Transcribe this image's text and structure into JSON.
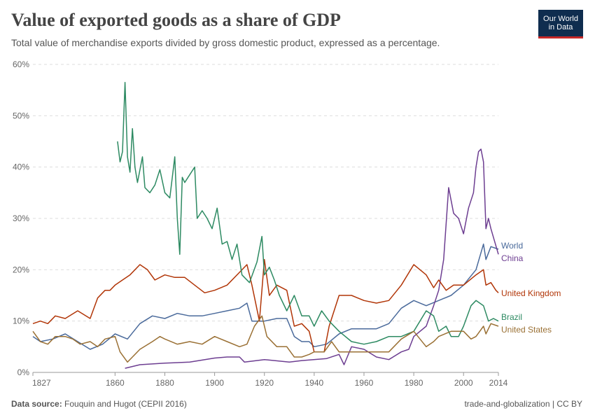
{
  "header": {
    "title": "Value of exported goods as a share of GDP",
    "subtitle": "Total value of merchandise exports divided by gross domestic product, expressed as a percentage.",
    "logo_line1": "Our World",
    "logo_line2": "in Data"
  },
  "footer": {
    "source_label": "Data source:",
    "source_text": "Fouquin and Hugot (CEPII 2016)",
    "license": "trade-and-globalization | CC BY"
  },
  "colors": {
    "World": "#4a6a9b",
    "China": "#6d3e91",
    "United Kingdom": "#b13507",
    "Brazil": "#2d8a62",
    "United States": "#9a7034",
    "grid": "#dddddd",
    "axis": "#999999"
  },
  "chart_data": {
    "type": "line",
    "title": "Value of exported goods as a share of GDP",
    "xlabel": "",
    "ylabel": "",
    "xlim": [
      1827,
      2014
    ],
    "ylim": [
      0,
      60
    ],
    "x_ticks": [
      1827,
      1860,
      1880,
      1900,
      1920,
      1940,
      1960,
      1980,
      2000,
      2014
    ],
    "y_ticks": [
      "0%",
      "10%",
      "20%",
      "30%",
      "40%",
      "50%",
      "60%"
    ],
    "grid": "horizontal dashed",
    "legend": "labels at line ends (right)",
    "series": [
      {
        "name": "World",
        "points": [
          [
            1827,
            7
          ],
          [
            1830,
            6
          ],
          [
            1835,
            6.5
          ],
          [
            1840,
            7.5
          ],
          [
            1845,
            6
          ],
          [
            1850,
            4.5
          ],
          [
            1855,
            5.5
          ],
          [
            1860,
            7.5
          ],
          [
            1865,
            6.5
          ],
          [
            1870,
            9.5
          ],
          [
            1875,
            11
          ],
          [
            1880,
            10.5
          ],
          [
            1885,
            11.5
          ],
          [
            1890,
            11
          ],
          [
            1895,
            11
          ],
          [
            1900,
            11.5
          ],
          [
            1905,
            12
          ],
          [
            1910,
            12.5
          ],
          [
            1913,
            13.5
          ],
          [
            1915,
            10
          ],
          [
            1920,
            10
          ],
          [
            1925,
            10.5
          ],
          [
            1929,
            10.5
          ],
          [
            1932,
            7
          ],
          [
            1935,
            6
          ],
          [
            1938,
            6
          ],
          [
            1940,
            5
          ],
          [
            1945,
            5.5
          ],
          [
            1950,
            7.5
          ],
          [
            1955,
            8.5
          ],
          [
            1960,
            8.5
          ],
          [
            1965,
            8.5
          ],
          [
            1970,
            9.5
          ],
          [
            1975,
            12.5
          ],
          [
            1980,
            14
          ],
          [
            1985,
            13
          ],
          [
            1990,
            14
          ],
          [
            1995,
            15
          ],
          [
            2000,
            17
          ],
          [
            2005,
            20
          ],
          [
            2008,
            25
          ],
          [
            2009,
            22
          ],
          [
            2011,
            24.5
          ],
          [
            2014,
            24
          ]
        ]
      },
      {
        "name": "China",
        "points": [
          [
            1864,
            0.8
          ],
          [
            1870,
            1.5
          ],
          [
            1880,
            1.8
          ],
          [
            1890,
            2
          ],
          [
            1900,
            2.8
          ],
          [
            1905,
            3
          ],
          [
            1910,
            3
          ],
          [
            1912,
            2
          ],
          [
            1920,
            2.5
          ],
          [
            1930,
            2
          ],
          [
            1935,
            2.3
          ],
          [
            1945,
            2.7
          ],
          [
            1950,
            3.5
          ],
          [
            1952,
            1.5
          ],
          [
            1955,
            5
          ],
          [
            1960,
            4.5
          ],
          [
            1965,
            3
          ],
          [
            1970,
            2.5
          ],
          [
            1975,
            4
          ],
          [
            1978,
            4.5
          ],
          [
            1980,
            7
          ],
          [
            1985,
            9
          ],
          [
            1988,
            13
          ],
          [
            1990,
            16
          ],
          [
            1992,
            22
          ],
          [
            1994,
            36
          ],
          [
            1996,
            31
          ],
          [
            1998,
            30
          ],
          [
            2000,
            27
          ],
          [
            2002,
            32
          ],
          [
            2004,
            35
          ],
          [
            2005,
            40
          ],
          [
            2006,
            43
          ],
          [
            2007,
            43.5
          ],
          [
            2008,
            41
          ],
          [
            2009,
            28
          ],
          [
            2010,
            30
          ],
          [
            2011,
            28
          ],
          [
            2014,
            23
          ]
        ]
      },
      {
        "name": "United Kingdom",
        "points": [
          [
            1827,
            9.5
          ],
          [
            1830,
            10
          ],
          [
            1833,
            9.5
          ],
          [
            1836,
            11
          ],
          [
            1840,
            10.5
          ],
          [
            1845,
            12
          ],
          [
            1850,
            10.5
          ],
          [
            1853,
            14.5
          ],
          [
            1856,
            16
          ],
          [
            1858,
            16
          ],
          [
            1860,
            17
          ],
          [
            1863,
            18
          ],
          [
            1866,
            19
          ],
          [
            1870,
            21
          ],
          [
            1873,
            20
          ],
          [
            1876,
            18
          ],
          [
            1880,
            19
          ],
          [
            1884,
            18.5
          ],
          [
            1888,
            18.5
          ],
          [
            1892,
            17
          ],
          [
            1896,
            15.5
          ],
          [
            1900,
            16
          ],
          [
            1905,
            17
          ],
          [
            1910,
            19.5
          ],
          [
            1913,
            21
          ],
          [
            1915,
            17
          ],
          [
            1918,
            10
          ],
          [
            1920,
            22
          ],
          [
            1922,
            15
          ],
          [
            1925,
            17
          ],
          [
            1929,
            16
          ],
          [
            1932,
            9
          ],
          [
            1935,
            9.5
          ],
          [
            1938,
            8
          ],
          [
            1940,
            4
          ],
          [
            1944,
            4
          ],
          [
            1946,
            9
          ],
          [
            1950,
            15
          ],
          [
            1955,
            15
          ],
          [
            1960,
            14
          ],
          [
            1965,
            13.5
          ],
          [
            1970,
            14
          ],
          [
            1975,
            17
          ],
          [
            1980,
            21
          ],
          [
            1985,
            19
          ],
          [
            1988,
            16.5
          ],
          [
            1990,
            18
          ],
          [
            1993,
            16
          ],
          [
            1996,
            17
          ],
          [
            2000,
            17
          ],
          [
            2005,
            19
          ],
          [
            2008,
            20
          ],
          [
            2009,
            17
          ],
          [
            2011,
            17.5
          ],
          [
            2013,
            16
          ],
          [
            2014,
            15.5
          ]
        ]
      },
      {
        "name": "Brazil",
        "points": [
          [
            1861,
            45
          ],
          [
            1862,
            41
          ],
          [
            1863,
            43
          ],
          [
            1864,
            56.5
          ],
          [
            1865,
            42
          ],
          [
            1866,
            39
          ],
          [
            1867,
            47.5
          ],
          [
            1868,
            40
          ],
          [
            1869,
            37
          ],
          [
            1871,
            42
          ],
          [
            1872,
            36
          ],
          [
            1874,
            35
          ],
          [
            1876,
            36.5
          ],
          [
            1878,
            39.5
          ],
          [
            1880,
            35
          ],
          [
            1882,
            34
          ],
          [
            1884,
            42
          ],
          [
            1885,
            30
          ],
          [
            1886,
            23
          ],
          [
            1887,
            38
          ],
          [
            1888,
            37
          ],
          [
            1890,
            38.5
          ],
          [
            1892,
            40
          ],
          [
            1893,
            30
          ],
          [
            1895,
            31.5
          ],
          [
            1897,
            30
          ],
          [
            1899,
            28
          ],
          [
            1901,
            32
          ],
          [
            1903,
            25
          ],
          [
            1905,
            25.5
          ],
          [
            1907,
            22
          ],
          [
            1909,
            25
          ],
          [
            1911,
            19
          ],
          [
            1914,
            17.5
          ],
          [
            1917,
            21.5
          ],
          [
            1919,
            26.5
          ],
          [
            1920,
            19
          ],
          [
            1922,
            20.5
          ],
          [
            1924,
            18
          ],
          [
            1926,
            15
          ],
          [
            1929,
            12
          ],
          [
            1932,
            15
          ],
          [
            1935,
            11
          ],
          [
            1938,
            11
          ],
          [
            1940,
            9
          ],
          [
            1943,
            12
          ],
          [
            1946,
            10
          ],
          [
            1950,
            8
          ],
          [
            1955,
            6
          ],
          [
            1960,
            5.5
          ],
          [
            1965,
            6
          ],
          [
            1970,
            7
          ],
          [
            1975,
            7
          ],
          [
            1980,
            8
          ],
          [
            1985,
            12
          ],
          [
            1988,
            11
          ],
          [
            1990,
            8
          ],
          [
            1993,
            9
          ],
          [
            1995,
            7
          ],
          [
            1998,
            7
          ],
          [
            2000,
            9
          ],
          [
            2003,
            13
          ],
          [
            2005,
            14
          ],
          [
            2008,
            13
          ],
          [
            2010,
            10
          ],
          [
            2012,
            10.5
          ],
          [
            2014,
            10
          ]
        ]
      },
      {
        "name": "United States",
        "points": [
          [
            1827,
            8
          ],
          [
            1830,
            6
          ],
          [
            1833,
            5.5
          ],
          [
            1836,
            7
          ],
          [
            1840,
            7
          ],
          [
            1843,
            6.5
          ],
          [
            1846,
            5.5
          ],
          [
            1850,
            6
          ],
          [
            1853,
            5
          ],
          [
            1856,
            6.5
          ],
          [
            1860,
            7
          ],
          [
            1862,
            4
          ],
          [
            1865,
            2
          ],
          [
            1867,
            3
          ],
          [
            1870,
            4.5
          ],
          [
            1875,
            6
          ],
          [
            1878,
            7
          ],
          [
            1880,
            6.5
          ],
          [
            1885,
            5.5
          ],
          [
            1890,
            6
          ],
          [
            1895,
            5.5
          ],
          [
            1900,
            7
          ],
          [
            1905,
            6
          ],
          [
            1910,
            5
          ],
          [
            1913,
            5.5
          ],
          [
            1916,
            9
          ],
          [
            1919,
            11
          ],
          [
            1921,
            7
          ],
          [
            1925,
            5
          ],
          [
            1929,
            5
          ],
          [
            1932,
            3
          ],
          [
            1935,
            3
          ],
          [
            1938,
            3.5
          ],
          [
            1940,
            4
          ],
          [
            1944,
            4
          ],
          [
            1947,
            6
          ],
          [
            1950,
            4
          ],
          [
            1955,
            4
          ],
          [
            1960,
            4
          ],
          [
            1965,
            4
          ],
          [
            1970,
            4
          ],
          [
            1975,
            6.5
          ],
          [
            1980,
            8
          ],
          [
            1985,
            5
          ],
          [
            1988,
            6
          ],
          [
            1990,
            7
          ],
          [
            1995,
            8
          ],
          [
            2000,
            8
          ],
          [
            2003,
            6.5
          ],
          [
            2005,
            7
          ],
          [
            2008,
            9
          ],
          [
            2009,
            7.5
          ],
          [
            2011,
            9.5
          ],
          [
            2014,
            9
          ]
        ]
      }
    ]
  }
}
